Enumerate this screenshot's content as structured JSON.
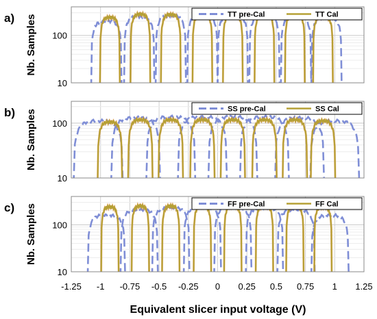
{
  "figure": {
    "xlabel": "Equivalent slicer input voltage (V)",
    "ylabel": "Nb. Samples",
    "colors": {
      "pre": "#7f8ed6",
      "cal": "#b5a035",
      "cal_edge": "#ef7d2a"
    }
  },
  "chart_data": [
    {
      "type": "line",
      "panel": "a)",
      "xlim": [
        -1.25,
        1.25
      ],
      "ylim": [
        10,
        400
      ],
      "yscale": "log",
      "grid": true,
      "legend_position": "top-right",
      "xticks": [
        -1.25,
        -1,
        -0.75,
        -0.5,
        -0.25,
        0,
        0.25,
        0.5,
        0.75,
        1,
        1.25
      ],
      "yticks": [
        10,
        100
      ],
      "ytick_labels": [
        "10",
        "100"
      ],
      "xtick_labels": [],
      "series": [
        {
          "name": "TT pre-Cal",
          "style": "dashed",
          "centers": [
            -0.95,
            -0.67,
            -0.4,
            -0.13,
            0.13,
            0.4,
            0.67,
            0.93
          ],
          "peaks": [
            200,
            250,
            260,
            270,
            270,
            260,
            250,
            240
          ],
          "half_width": 0.13
        },
        {
          "name": "TT Cal",
          "style": "solid",
          "centers": [
            -0.92,
            -0.66,
            -0.4,
            -0.13,
            0.13,
            0.4,
            0.66,
            0.9
          ],
          "peaks": [
            240,
            280,
            275,
            280,
            270,
            275,
            280,
            250
          ],
          "half_width": 0.085
        }
      ]
    },
    {
      "type": "line",
      "panel": "b)",
      "xlim": [
        -1.25,
        1.25
      ],
      "ylim": [
        10,
        250
      ],
      "yscale": "log",
      "grid": true,
      "legend_position": "top-right",
      "xticks": [
        -1.25,
        -1,
        -0.75,
        -0.5,
        -0.25,
        0,
        0.25,
        0.5,
        0.75,
        1,
        1.25
      ],
      "yticks": [
        10,
        100
      ],
      "ytick_labels": [
        "10",
        "100"
      ],
      "xtick_labels": [],
      "series": [
        {
          "name": "SS pre-Cal",
          "style": "dashed",
          "centers": [
            -1.02,
            -0.7,
            -0.4,
            -0.13,
            0.13,
            0.4,
            0.7,
            1.0
          ],
          "peaks": [
            110,
            125,
            130,
            130,
            130,
            130,
            125,
            110
          ],
          "half_width": 0.21
        },
        {
          "name": "SS Cal",
          "style": "solid",
          "centers": [
            -0.92,
            -0.66,
            -0.4,
            -0.13,
            0.13,
            0.4,
            0.66,
            0.9
          ],
          "peaks": [
            105,
            115,
            115,
            115,
            115,
            115,
            115,
            110
          ],
          "half_width": 0.105
        }
      ]
    },
    {
      "type": "line",
      "panel": "c)",
      "xlim": [
        -1.25,
        1.25
      ],
      "ylim": [
        10,
        400
      ],
      "yscale": "log",
      "grid": true,
      "legend_position": "top-right",
      "xticks": [
        -1.25,
        -1,
        -0.75,
        -0.5,
        -0.25,
        0,
        0.25,
        0.5,
        0.75,
        1,
        1.25
      ],
      "yticks": [
        10,
        100
      ],
      "ytick_labels": [
        "10",
        "100"
      ],
      "xtick_labels": [
        "-1.25",
        "-1",
        "-0.75",
        "-0.5",
        "-0.25",
        "0",
        "0.25",
        "0.5",
        "0.75",
        "1",
        "1.25"
      ],
      "series": [
        {
          "name": "FF pre-Cal",
          "style": "dashed",
          "centers": [
            -0.95,
            -0.67,
            -0.4,
            -0.13,
            0.13,
            0.4,
            0.67,
            0.96
          ],
          "peaks": [
            160,
            210,
            230,
            240,
            240,
            230,
            210,
            160
          ],
          "half_width": 0.16
        },
        {
          "name": "FF Cal",
          "style": "solid",
          "centers": [
            -0.92,
            -0.66,
            -0.4,
            -0.13,
            0.13,
            0.4,
            0.66,
            0.9
          ],
          "peaks": [
            240,
            250,
            250,
            250,
            250,
            250,
            250,
            240
          ],
          "half_width": 0.075
        }
      ]
    }
  ]
}
